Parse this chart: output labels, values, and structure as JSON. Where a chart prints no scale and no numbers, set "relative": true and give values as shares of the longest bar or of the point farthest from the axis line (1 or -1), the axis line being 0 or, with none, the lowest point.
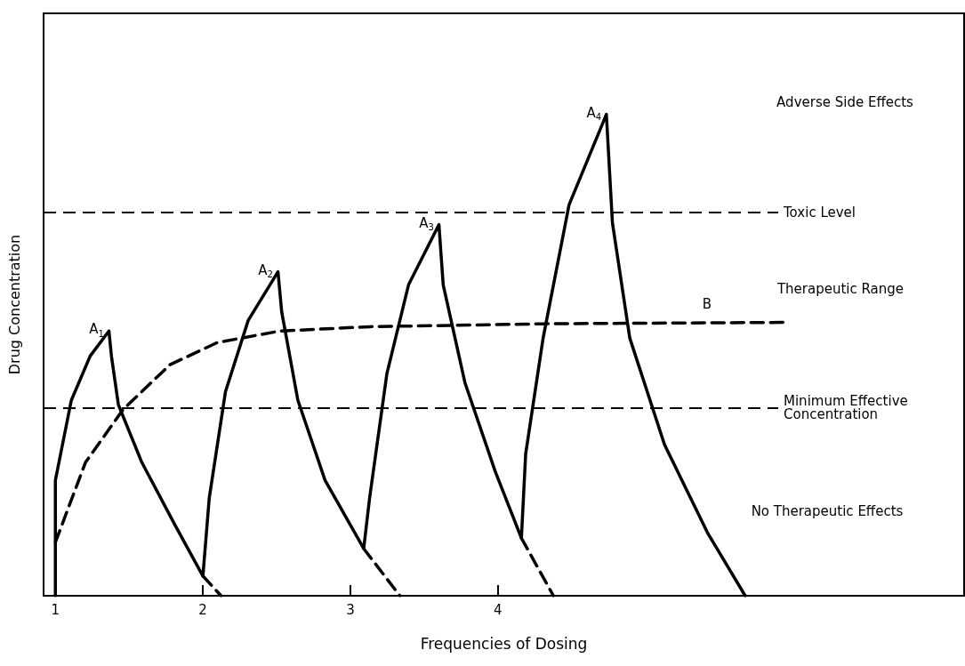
{
  "chart_data": {
    "type": "line",
    "relative": true,
    "xlabel": "Frequencies of Dosing",
    "ylabel": "Drug Concentration",
    "xlim": [
      0.92,
      7.16
    ],
    "xticks": [
      1,
      2,
      3,
      4
    ],
    "tick_labels": "x",
    "grid": false,
    "marker": "none",
    "series": [
      {
        "color": "#000000",
        "line_style": "solid",
        "x": [
          1.0,
          1.0,
          1.108,
          1.236,
          1.363,
          1.38,
          1.427,
          1.586,
          1.809,
          2.0,
          2.043,
          2.153,
          2.307,
          2.509,
          2.534,
          2.644,
          2.828,
          3.09,
          3.13,
          3.247,
          3.394,
          3.6,
          3.629,
          3.776,
          3.982,
          4.159,
          4.188,
          4.306,
          4.482,
          4.735,
          4.776,
          4.894,
          5.129,
          5.424,
          5.676
        ],
        "values": [
          0,
          0.24,
          0.406,
          0.498,
          0.55,
          0.498,
          0.397,
          0.277,
          0.148,
          0.041,
          0.203,
          0.424,
          0.572,
          0.673,
          0.59,
          0.406,
          0.24,
          0.098,
          0.203,
          0.461,
          0.646,
          0.771,
          0.646,
          0.443,
          0.258,
          0.12,
          0.295,
          0.535,
          0.812,
          1.0,
          0.775,
          0.535,
          0.314,
          0.129,
          0
        ]
      },
      {
        "color": "#000000",
        "line_style": "dashed",
        "x": [
          2.0,
          2.123,
          2.5,
          3.09,
          3.335,
          3.7,
          4.159,
          4.376
        ],
        "values": [
          0.041,
          0,
          null,
          0.098,
          0,
          null,
          0.12,
          0
        ]
      },
      {
        "color": "#000000",
        "line_style": "dashed",
        "x": [
          1.0,
          1.204,
          1.459,
          1.777,
          2.097,
          2.521,
          3.135,
          4.306,
          5.953
        ],
        "values": [
          0.111,
          0.277,
          0.387,
          0.48,
          0.526,
          0.55,
          0.559,
          0.565,
          0.568
        ]
      }
    ],
    "ref_lines": [
      {
        "axis": "y",
        "value": 0.797,
        "label": "Toxic Level",
        "color": "#000000",
        "line_style": "dashed"
      },
      {
        "axis": "y",
        "value": 0.391,
        "label": "Minimum Effective Concentration",
        "color": "#000000",
        "line_style": "dashed"
      }
    ],
    "annotations": [
      {
        "text": "A$_{1}$",
        "x": 1.363,
        "y": 0.55
      },
      {
        "text": "A$_{2}$",
        "x": 2.509,
        "y": 0.673
      },
      {
        "text": "A$_{3}$",
        "x": 3.6,
        "y": 0.771
      },
      {
        "text": "A$_{4}$",
        "x": 4.735,
        "y": 1.0
      },
      "B",
      "Adverse Side Effects",
      "Therapeutic Range",
      "No Therapeutic Effects"
    ]
  }
}
